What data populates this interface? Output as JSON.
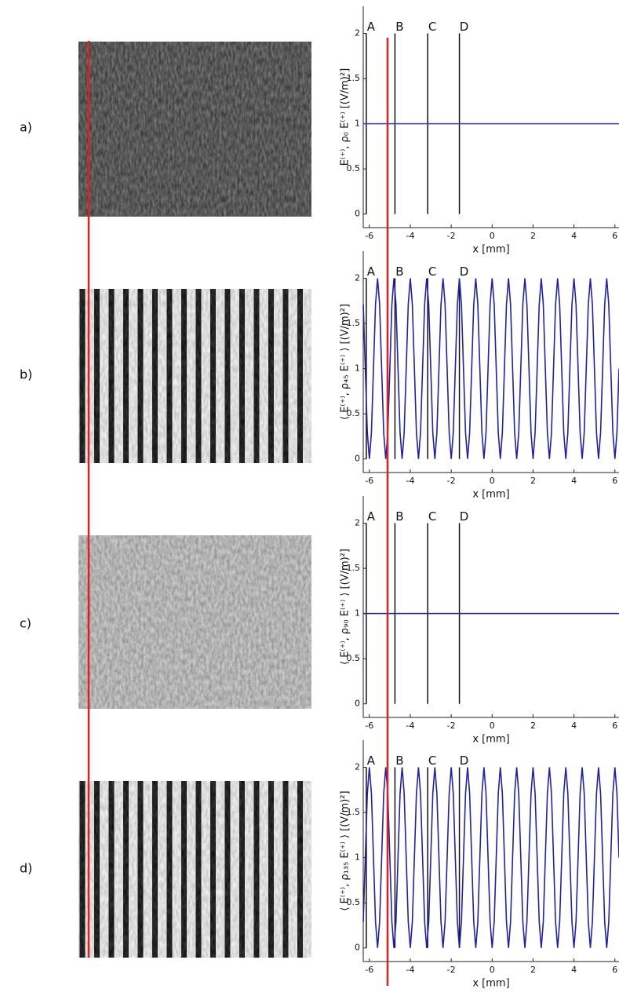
{
  "chart_data": [
    {
      "type": "line",
      "label": "a)",
      "ylabel": "E⁽⁺⁾, ρ₀ E⁽⁺⁾  [(V/m)²]",
      "xlabel": "x [mm]",
      "xlim": [
        -6.3,
        6.2
      ],
      "ylim": [
        -0.15,
        2.3
      ],
      "xticks": [
        -6,
        -4,
        -2,
        0,
        2,
        4,
        6
      ],
      "yticks": [
        0,
        0.5,
        1,
        1.5,
        2
      ],
      "markers": [
        {
          "label": "A",
          "x": -6.15
        },
        {
          "label": "B",
          "x": -4.75
        },
        {
          "label": "C",
          "x": -3.15
        },
        {
          "label": "D",
          "x": -1.6
        }
      ],
      "color": "#3a3ae0",
      "x": [
        -6.3,
        6.2
      ],
      "values": [
        1,
        1
      ]
    },
    {
      "type": "line",
      "label": "b)",
      "ylabel": "⟨ E⁽⁺⁾, ρ₄₅ E⁽⁺⁾ ⟩ [(V/m)²]",
      "xlabel": "x [mm]",
      "xlim": [
        -6.3,
        6.2
      ],
      "ylim": [
        -0.15,
        2.3
      ],
      "xticks": [
        -6,
        -4,
        -2,
        0,
        2,
        4,
        6
      ],
      "yticks": [
        0,
        0.5,
        1,
        1.5,
        2
      ],
      "markers": [
        {
          "label": "A",
          "x": -6.15
        },
        {
          "label": "B",
          "x": -4.75
        },
        {
          "label": "C",
          "x": -3.15
        },
        {
          "label": "D",
          "x": -1.6
        }
      ],
      "color": "#2020b0",
      "x": [
        -6.3,
        -6.2,
        -6.1,
        -6,
        -5.9,
        -5.8,
        -5.7,
        -5.6,
        -5.5,
        -5.4,
        -5.3,
        -5.2,
        -5.1,
        -5,
        -4.9,
        -4.8,
        -4.7,
        -4.6,
        -4.5,
        -4.4,
        -4.3,
        -4.2,
        -4.1,
        -4,
        -3.9,
        -3.8,
        -3.7,
        -3.6,
        -3.5,
        -3.4,
        -3.3,
        -3.2,
        -3.1,
        -3,
        -2.9,
        -2.8,
        -2.7,
        -2.6,
        -2.5,
        -2.4,
        -2.3,
        -2.2,
        -2.1,
        -2,
        -1.9,
        -1.8,
        -1.7,
        -1.6,
        -1.5,
        -1.4,
        -1.3,
        -1.2,
        -1.1,
        -1,
        -0.9,
        -0.8,
        -0.7,
        -0.6,
        -0.5,
        -0.4,
        -0.3,
        -0.2,
        -0.1,
        0,
        0.1,
        0.2,
        0.3,
        0.4,
        0.5,
        0.6,
        0.7,
        0.8,
        0.9,
        1,
        1.1,
        1.2,
        1.3,
        1.4,
        1.5,
        1.6,
        1.7,
        1.8,
        1.9,
        2,
        2.1,
        2.2,
        2.3,
        2.4,
        2.5,
        2.6,
        2.7,
        2.8,
        2.9,
        3,
        3.1,
        3.2,
        3.3,
        3.4,
        3.5,
        3.6,
        3.7,
        3.8,
        3.9,
        4,
        4.1,
        4.2,
        4.3,
        4.4,
        4.5,
        4.6,
        4.7,
        4.8,
        4.9,
        5,
        5.1,
        5.2,
        5.3,
        5.4,
        5.5,
        5.6,
        5.7,
        5.8,
        5.9,
        6,
        6.1,
        6.2
      ],
      "values": [
        1.71,
        1,
        0.29,
        0,
        0.29,
        1,
        1.71,
        2,
        1.71,
        1,
        0.29,
        0,
        0.29,
        1,
        1.71,
        2,
        1.71,
        1,
        0.29,
        0,
        0.29,
        1,
        1.71,
        2,
        1.71,
        1,
        0.29,
        0,
        0.29,
        1,
        1.71,
        2,
        1.71,
        1,
        0.29,
        0,
        0.29,
        1,
        1.71,
        2,
        1.71,
        1,
        0.29,
        0,
        0.29,
        1,
        1.71,
        2,
        1.71,
        1,
        0.29,
        0,
        0.29,
        1,
        1.71,
        2,
        1.71,
        1,
        0.29,
        0,
        0.29,
        1,
        1.71,
        2,
        1.71,
        1,
        0.29,
        0,
        0.29,
        1,
        1.71,
        2,
        1.71,
        1,
        0.29,
        0,
        0.29,
        1,
        1.71,
        2,
        1.71,
        1,
        0.29,
        0,
        0.29,
        1,
        1.71,
        2,
        1.71,
        1,
        0.29,
        0,
        0.29,
        1,
        1.71,
        2,
        1.71,
        1,
        0.29,
        0,
        0.29,
        1,
        1.71,
        2,
        1.71,
        1,
        0.29,
        0,
        0.29,
        1,
        1.71,
        2,
        1.71,
        1,
        0.29,
        0,
        0.29,
        1,
        1.71,
        2,
        1.71,
        1,
        0.29,
        0,
        0.29,
        1
      ]
    },
    {
      "type": "line",
      "label": "c)",
      "ylabel": "⟨ E⁽⁺⁾, ρ₉₀ E⁽⁺⁾ ⟩ [(V/m)²]",
      "xlabel": "x [mm]",
      "xlim": [
        -6.3,
        6.2
      ],
      "ylim": [
        -0.15,
        2.3
      ],
      "xticks": [
        -6,
        -4,
        -2,
        0,
        2,
        4,
        6
      ],
      "yticks": [
        0,
        0.5,
        1,
        1.5,
        2
      ],
      "markers": [
        {
          "label": "A",
          "x": -6.15
        },
        {
          "label": "B",
          "x": -4.75
        },
        {
          "label": "C",
          "x": -3.15
        },
        {
          "label": "D",
          "x": -1.6
        }
      ],
      "color": "#2020b0",
      "x": [
        -6.3,
        6.2
      ],
      "values": [
        1,
        1
      ]
    },
    {
      "type": "line",
      "label": "d)",
      "ylabel": "⟨ E⁽⁺⁾, ρ₁₃₅ E⁽⁺⁾ ⟩ [(V/m)²]",
      "xlabel": "x [mm]",
      "xlim": [
        -6.3,
        6.2
      ],
      "ylim": [
        -0.15,
        2.3
      ],
      "xticks": [
        -6,
        -4,
        -2,
        0,
        2,
        4,
        6
      ],
      "yticks": [
        0,
        0.5,
        1,
        1.5,
        2
      ],
      "markers": [
        {
          "label": "A",
          "x": -6.15
        },
        {
          "label": "B",
          "x": -4.75
        },
        {
          "label": "C",
          "x": -3.15
        },
        {
          "label": "D",
          "x": -1.6
        }
      ],
      "color": "#2020b0",
      "x": [
        -6.3,
        -6.2,
        -6.1,
        -6,
        -5.9,
        -5.8,
        -5.7,
        -5.6,
        -5.5,
        -5.4,
        -5.3,
        -5.2,
        -5.1,
        -5,
        -4.9,
        -4.8,
        -4.7,
        -4.6,
        -4.5,
        -4.4,
        -4.3,
        -4.2,
        -4.1,
        -4,
        -3.9,
        -3.8,
        -3.7,
        -3.6,
        -3.5,
        -3.4,
        -3.3,
        -3.2,
        -3.1,
        -3,
        -2.9,
        -2.8,
        -2.7,
        -2.6,
        -2.5,
        -2.4,
        -2.3,
        -2.2,
        -2.1,
        -2,
        -1.9,
        -1.8,
        -1.7,
        -1.6,
        -1.5,
        -1.4,
        -1.3,
        -1.2,
        -1.1,
        -1,
        -0.9,
        -0.8,
        -0.7,
        -0.6,
        -0.5,
        -0.4,
        -0.3,
        -0.2,
        -0.1,
        0,
        0.1,
        0.2,
        0.3,
        0.4,
        0.5,
        0.6,
        0.7,
        0.8,
        0.9,
        1,
        1.1,
        1.2,
        1.3,
        1.4,
        1.5,
        1.6,
        1.7,
        1.8,
        1.9,
        2,
        2.1,
        2.2,
        2.3,
        2.4,
        2.5,
        2.6,
        2.7,
        2.8,
        2.9,
        3,
        3.1,
        3.2,
        3.3,
        3.4,
        3.5,
        3.6,
        3.7,
        3.8,
        3.9,
        4,
        4.1,
        4.2,
        4.3,
        4.4,
        4.5,
        4.6,
        4.7,
        4.8,
        4.9,
        5,
        5.1,
        5.2,
        5.3,
        5.4,
        5.5,
        5.6,
        5.7,
        5.8,
        5.9,
        6,
        6.1,
        6.2
      ],
      "values": [
        0.29,
        1,
        1.71,
        2,
        1.71,
        1,
        0.29,
        0,
        0.29,
        1,
        1.71,
        2,
        1.71,
        1,
        0.29,
        0,
        0.29,
        1,
        1.71,
        2,
        1.71,
        1,
        0.29,
        0,
        0.29,
        1,
        1.71,
        2,
        1.71,
        1,
        0.29,
        0,
        0.29,
        1,
        1.71,
        2,
        1.71,
        1,
        0.29,
        0,
        0.29,
        1,
        1.71,
        2,
        1.71,
        1,
        0.29,
        0,
        0.29,
        1,
        1.71,
        2,
        1.71,
        1,
        0.29,
        0,
        0.29,
        1,
        1.71,
        2,
        1.71,
        1,
        0.29,
        0,
        0.29,
        1,
        1.71,
        2,
        1.71,
        1,
        0.29,
        0,
        0.29,
        1,
        1.71,
        2,
        1.71,
        1,
        0.29,
        0,
        0.29,
        1,
        1.71,
        2,
        1.71,
        1,
        0.29,
        0,
        0.29,
        1,
        1.71,
        2,
        1.71,
        1,
        0.29,
        0,
        0.29,
        1,
        1.71,
        2,
        1.71,
        1,
        0.29,
        0,
        0.29,
        1,
        1.71,
        2,
        1.71,
        1,
        0.29,
        0,
        0.29,
        1,
        1.71,
        2,
        1.71,
        1,
        0.29,
        0,
        0.29,
        1,
        1.71,
        2,
        1.71,
        1
      ]
    }
  ]
}
